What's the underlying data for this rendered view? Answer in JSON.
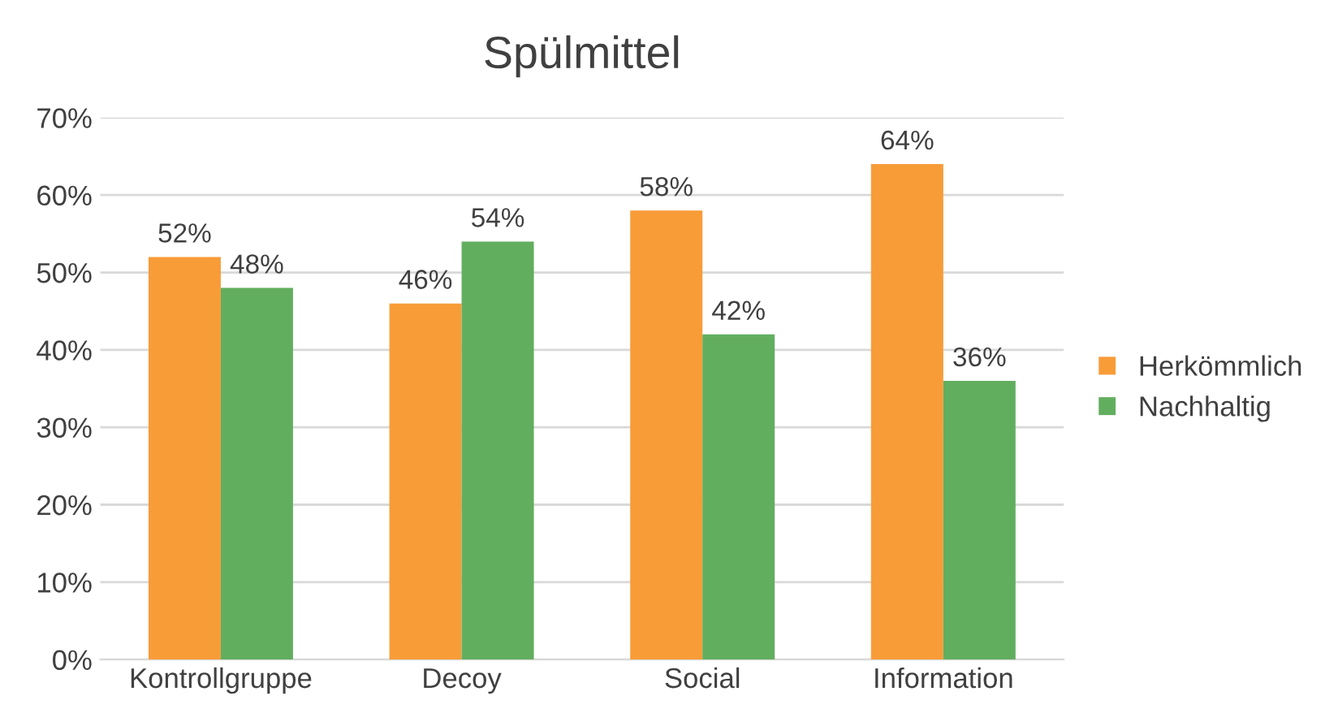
{
  "chart_data": {
    "type": "bar",
    "title": "Spülmittel",
    "categories": [
      "Kontrollgruppe",
      "Decoy",
      "Social",
      "Information"
    ],
    "series": [
      {
        "name": "Herkömmlich",
        "color": "#f89c38",
        "values": [
          52,
          46,
          58,
          64
        ],
        "value_labels": [
          "52%",
          "46%",
          "58%",
          "64%"
        ]
      },
      {
        "name": "Nachhaltig",
        "color": "#62ae5f",
        "values": [
          48,
          54,
          42,
          36
        ],
        "value_labels": [
          "48%",
          "54%",
          "42%",
          "36%"
        ]
      }
    ],
    "ylim": [
      0,
      70
    ],
    "yticks": [
      {
        "value": 0,
        "label": "0%"
      },
      {
        "value": 10,
        "label": "10%"
      },
      {
        "value": 20,
        "label": "20%"
      },
      {
        "value": 30,
        "label": "30%"
      },
      {
        "value": 40,
        "label": "40%"
      },
      {
        "value": 50,
        "label": "50%"
      },
      {
        "value": 60,
        "label": "60%"
      },
      {
        "value": 70,
        "label": "70%"
      }
    ],
    "grid": "y",
    "legend": "right"
  }
}
